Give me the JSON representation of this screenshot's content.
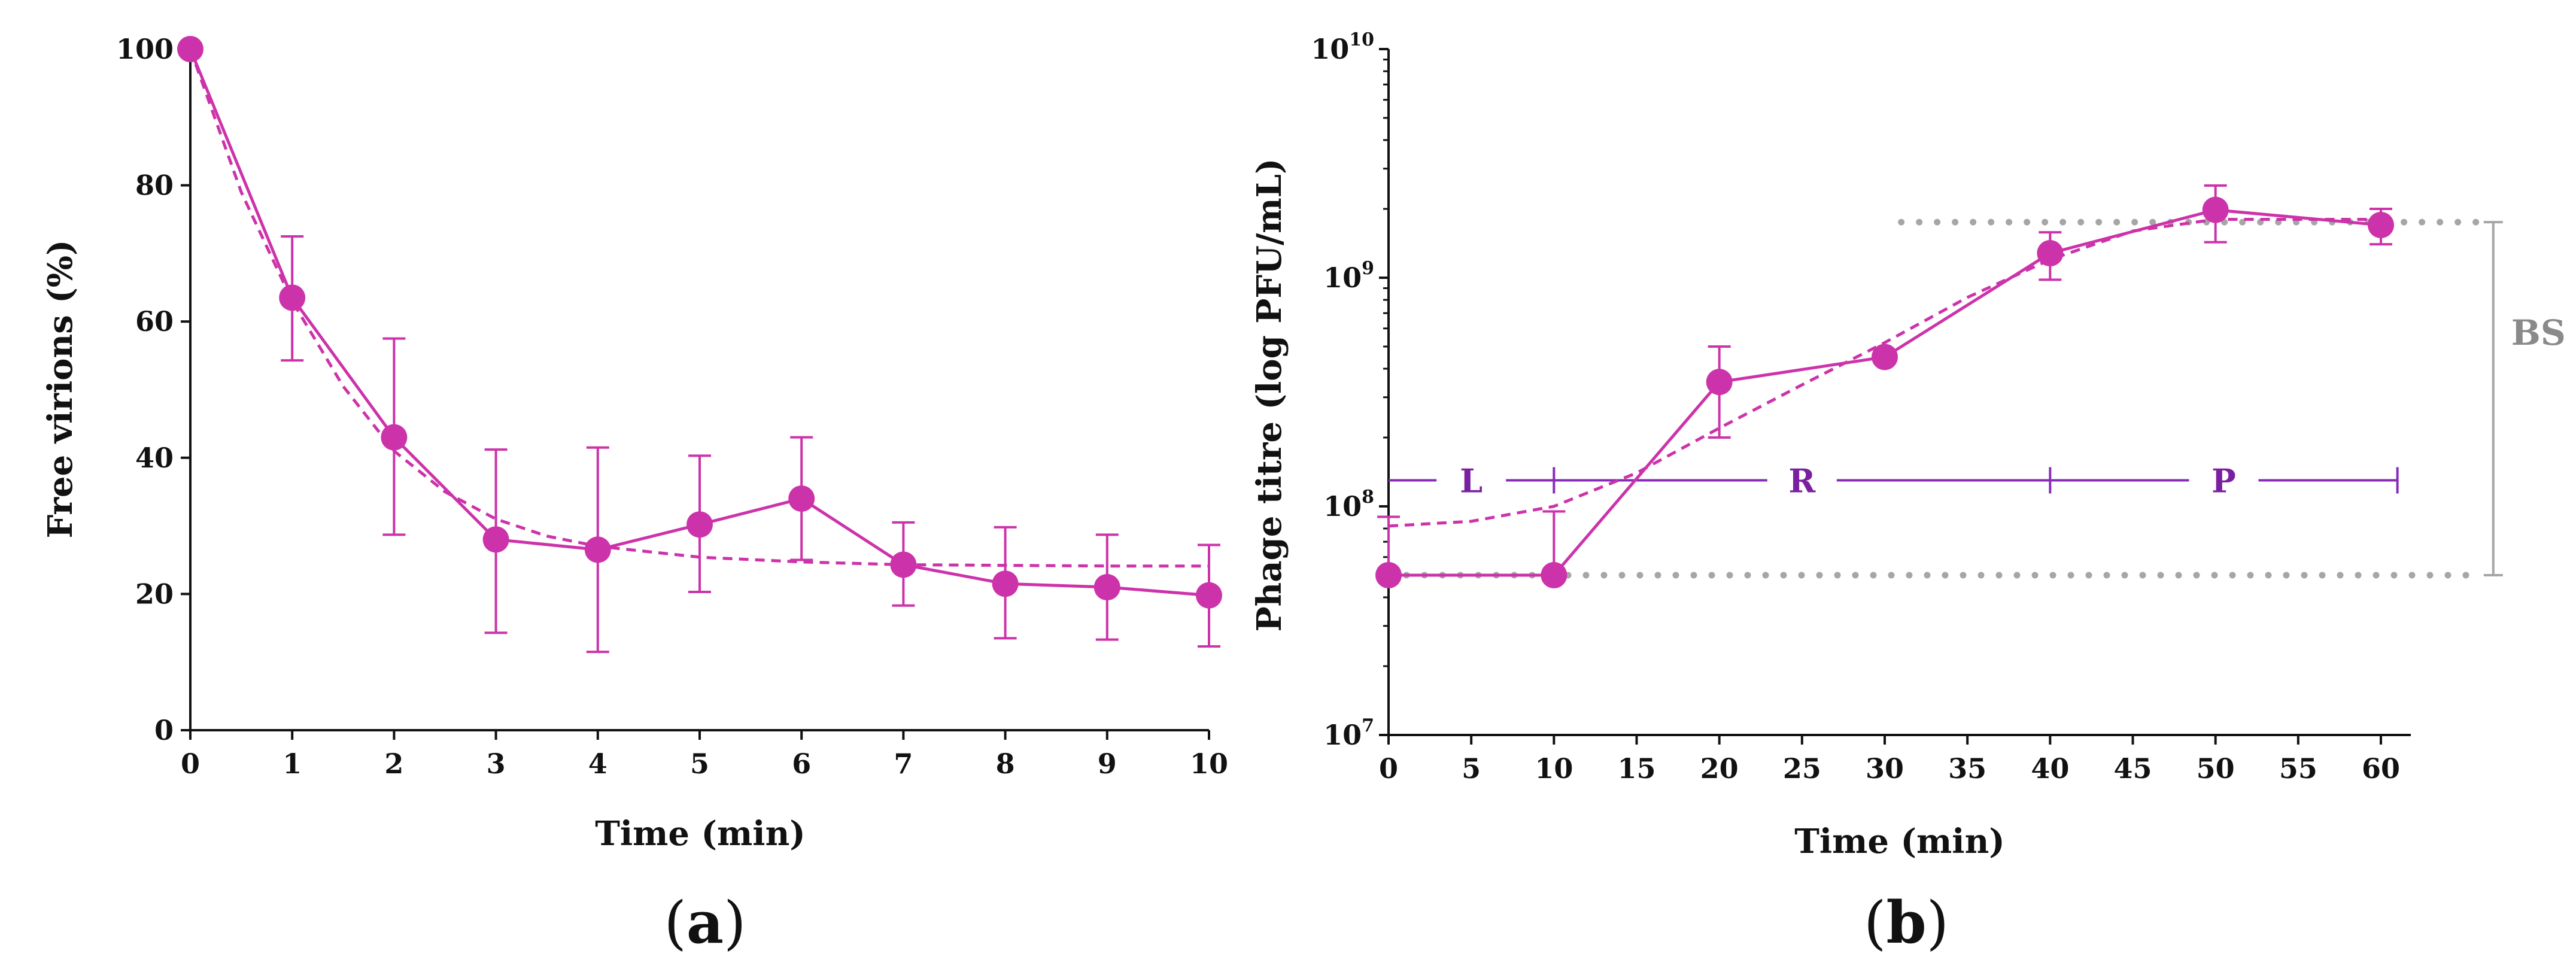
{
  "colors": {
    "series": "#cc33aa",
    "phase": "#8a2bb8",
    "reference": "#a6a6a6",
    "bs_label": "#8a8a8a",
    "axis": "#111111"
  },
  "panels": {
    "a": {
      "label_open": "(",
      "label_letter": "a",
      "label_close": ")"
    },
    "b": {
      "label_open": "(",
      "label_letter": "b",
      "label_close": ")"
    }
  },
  "chart_data": [
    {
      "id": "a",
      "type": "line",
      "title": "",
      "xlabel": "Time (min)",
      "ylabel": "Free virions (%)",
      "xlim": [
        0,
        10
      ],
      "ylim": [
        0,
        100
      ],
      "x_ticks": [
        "0",
        "1",
        "2",
        "3",
        "4",
        "5",
        "6",
        "7",
        "8",
        "9",
        "10"
      ],
      "y_ticks": [
        "0",
        "20",
        "40",
        "60",
        "80",
        "100"
      ],
      "series": [
        {
          "name": "observed",
          "style": "solid-markers",
          "x": [
            0,
            1,
            2,
            3,
            4,
            5,
            6,
            7,
            8,
            9,
            10
          ],
          "values": [
            100,
            63.5,
            43,
            28,
            26.5,
            30.2,
            34,
            24.3,
            21.5,
            21,
            19.8
          ],
          "error_upper": [
            100,
            72.5,
            57.5,
            41.2,
            41.5,
            40.3,
            43,
            30.5,
            29.8,
            28.7,
            27.2
          ],
          "error_lower": [
            100,
            54.3,
            28.7,
            14.3,
            11.5,
            20.3,
            25,
            18.3,
            13.5,
            13.3,
            12.3
          ]
        },
        {
          "name": "fitted",
          "style": "dashed",
          "x": [
            0,
            0.5,
            1,
            1.5,
            2,
            2.5,
            3,
            3.5,
            4,
            5,
            6,
            7,
            8,
            9,
            10
          ],
          "values": [
            100,
            79,
            63,
            50.5,
            41,
            35,
            31,
            28.5,
            27,
            25.4,
            24.7,
            24.3,
            24.2,
            24.1,
            24.1
          ]
        }
      ]
    },
    {
      "id": "b",
      "type": "line",
      "title": "",
      "xlabel": "Time (min)",
      "ylabel": "Phage  titre (log PFU/mL)",
      "y_scale": "log",
      "xlim": [
        0,
        60
      ],
      "ylim": [
        10000000,
        10000000000
      ],
      "x_ticks": [
        "0",
        "5",
        "10",
        "15",
        "20",
        "25",
        "30",
        "35",
        "40",
        "45",
        "50",
        "55",
        "60"
      ],
      "y_ticks": [
        {
          "base": "10",
          "exp": "7"
        },
        {
          "base": "10",
          "exp": "8"
        },
        {
          "base": "10",
          "exp": "9"
        },
        {
          "base": "10",
          "exp": "10"
        }
      ],
      "series": [
        {
          "name": "observed",
          "style": "solid-markers",
          "x": [
            0,
            10,
            20,
            30,
            40,
            50,
            60
          ],
          "values": [
            50000000,
            50000000,
            350000000,
            450000000,
            1280000000,
            1980000000,
            1700000000
          ],
          "error_upper": [
            90000000,
            95000000,
            500000000,
            450000000,
            1580000000,
            2530000000,
            2000000000
          ],
          "error_lower": [
            50000000,
            50000000,
            200000000,
            450000000,
            980000000,
            1430000000,
            1400000000
          ]
        },
        {
          "name": "fitted",
          "style": "dashed",
          "x": [
            0,
            5,
            10,
            15,
            20,
            25,
            30,
            35,
            40,
            45,
            50,
            55,
            60
          ],
          "values": [
            82000000,
            86000000,
            100000000,
            140000000,
            220000000,
            340000000,
            520000000,
            820000000,
            1200000000,
            1600000000,
            1800000000,
            1800000000,
            1800000000
          ]
        }
      ],
      "phases": [
        {
          "label": "L",
          "x_start": 0,
          "x_end": 10
        },
        {
          "label": "R",
          "x_start": 10,
          "x_end": 40
        },
        {
          "label": "P",
          "x_start": 40,
          "x_end": 61
        }
      ],
      "phase_level": 130000000,
      "reference_lines": [
        {
          "name": "lower-plateau",
          "value": 50000000,
          "x_start": 0,
          "x_end": 66
        },
        {
          "name": "upper-plateau",
          "value": 1750000000,
          "x_start": 31,
          "x_end": 66
        }
      ],
      "annotations": [
        {
          "name": "burst-size",
          "label": "BS",
          "from": 50000000,
          "to": 1750000000
        }
      ]
    }
  ]
}
